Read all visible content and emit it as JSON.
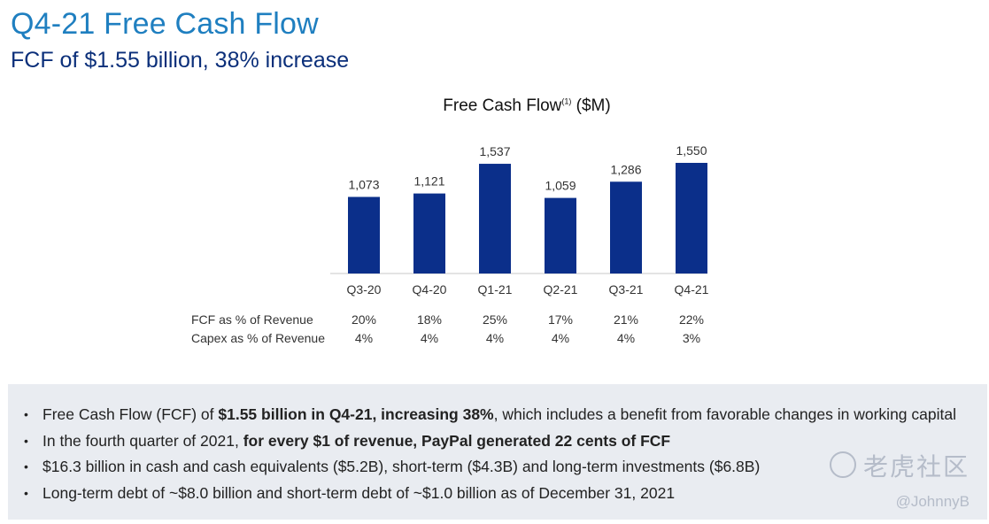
{
  "header": {
    "title": "Q4-21 Free Cash Flow",
    "subtitle": "FCF of $1.55 billion, 38% increase"
  },
  "chart_data": {
    "type": "bar",
    "title": "Free Cash Flow",
    "title_sup": "(1)",
    "title_unit": "($M)",
    "categories": [
      "Q3-20",
      "Q4-20",
      "Q1-21",
      "Q2-21",
      "Q3-21",
      "Q4-21"
    ],
    "values": [
      1073,
      1121,
      1537,
      1059,
      1286,
      1550
    ],
    "value_labels": [
      "1,073",
      "1,121",
      "1,537",
      "1,059",
      "1,286",
      "1,550"
    ],
    "bar_color": "#0b2f8a",
    "ylim": [
      0,
      1550
    ],
    "grid": false
  },
  "metrics": [
    {
      "label": "FCF as % of Revenue",
      "values": [
        "20%",
        "18%",
        "25%",
        "17%",
        "21%",
        "22%"
      ]
    },
    {
      "label": "Capex as % of Revenue",
      "values": [
        "4%",
        "4%",
        "4%",
        "4%",
        "4%",
        "3%"
      ]
    }
  ],
  "bullets": [
    {
      "parts": [
        {
          "text": "Free Cash Flow (FCF) of ",
          "bold": false
        },
        {
          "text": "$1.55 billion in Q4-21, increasing 38%",
          "bold": true
        },
        {
          "text": ", which includes a benefit from favorable changes in working capital",
          "bold": false
        }
      ]
    },
    {
      "parts": [
        {
          "text": "In the fourth quarter of 2021, ",
          "bold": false
        },
        {
          "text": "for every $1 of revenue, PayPal generated 22 cents of FCF",
          "bold": true
        }
      ]
    },
    {
      "parts": [
        {
          "text": "$16.3 billion in cash and cash equivalents ($5.2B), short-term ($4.3B) and long-term investments ($6.8B)",
          "bold": false
        }
      ]
    },
    {
      "parts": [
        {
          "text": "Long-term debt of ~$8.0 billion and short-term debt of ~$1.0 billion as of December 31, 2021",
          "bold": false
        }
      ]
    }
  ],
  "bullet_glyph": "•",
  "watermark": {
    "text": "老虎社区",
    "handle": "@JohnnyB"
  }
}
